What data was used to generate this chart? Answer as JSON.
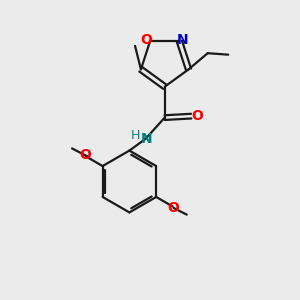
{
  "bg_color": "#ebebeb",
  "bond_color": "#1a1a1a",
  "oxygen_color": "#ff0000",
  "nitrogen_color": "#0000cc",
  "nitrogen_nh_color": "#008080",
  "line_width": 1.6,
  "figsize": [
    3.0,
    3.0
  ],
  "dpi": 100,
  "xlim": [
    0,
    10
  ],
  "ylim": [
    0,
    10
  ]
}
